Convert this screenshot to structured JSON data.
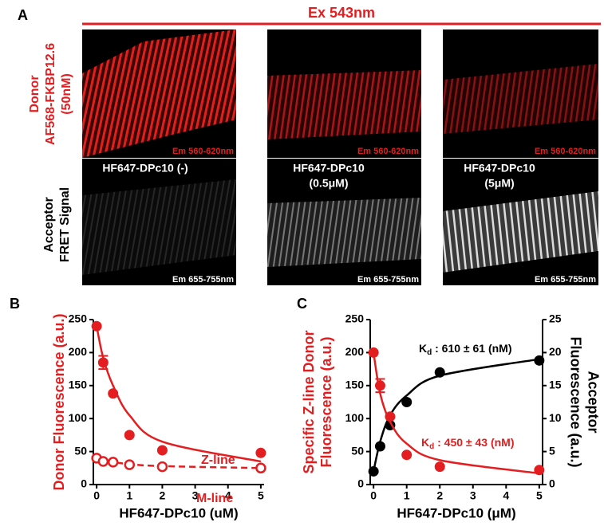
{
  "header": {
    "label": "A",
    "title": "Ex 543nm"
  },
  "images": {
    "row_labels": [
      [
        "Donor",
        "AF568-FKBP12.6",
        "(50nM)"
      ],
      [
        "Acceptor",
        "FRET Signal"
      ]
    ],
    "donor_captions": [
      "Em 560-620nm",
      "Em 560-620nm",
      "Em 560-620nm"
    ],
    "acceptor_titles": [
      [
        "HF647-DPc10 (-)"
      ],
      [
        "HF647-DPc10",
        "(0.5μM)"
      ],
      [
        "HF647-DPc10",
        "(5μM)"
      ]
    ],
    "acceptor_captions": [
      "Em 655-755nm",
      "Em 655-755nm",
      "Em 655-755nm"
    ]
  },
  "chart_data": [
    {
      "type": "scatter",
      "panel": "B",
      "xlabel": "HF647-DPc10 (uM)",
      "ylabel": [
        "Donor Fluorescence (a.u.)"
      ],
      "ylabel_color": "#e41e20",
      "x": [
        0,
        0.2,
        0.5,
        1,
        2,
        5
      ],
      "xlim": [
        -0.1,
        5.1
      ],
      "xticks": [
        0,
        1,
        2,
        3,
        4,
        5
      ],
      "ylim": [
        0,
        250
      ],
      "yticks": [
        0,
        50,
        100,
        150,
        200,
        250
      ],
      "series": [
        {
          "name": "Z-line",
          "color": "#e41e20",
          "marker": "filled",
          "line_style": "solid",
          "values": [
            240,
            185,
            138,
            75,
            52,
            48
          ],
          "errors": [
            null,
            10,
            null,
            null,
            null,
            null
          ],
          "fit": [
            240,
            192,
            150,
            105,
            65,
            35
          ]
        },
        {
          "name": "M-line",
          "color": "#e41e20",
          "marker": "open",
          "line_style": "dashed",
          "values": [
            40,
            35,
            34,
            30,
            27,
            25
          ],
          "fit": [
            40,
            36,
            34,
            31,
            28,
            25
          ]
        }
      ]
    },
    {
      "type": "scatter",
      "panel": "C",
      "xlabel": "HF647-DPc10 (μM)",
      "ylabel": [
        "Specific Z-line Donor",
        "Fluorescence (a.u.)"
      ],
      "ylabel_color": "#e41e20",
      "y2label": [
        "Acceptor",
        "Fluorescence (a.u.)"
      ],
      "y2label_color": "#000000",
      "x": [
        0,
        0.2,
        0.5,
        1,
        2,
        5
      ],
      "xlim": [
        -0.1,
        5.1
      ],
      "xticks": [
        0,
        1,
        2,
        3,
        4,
        5
      ],
      "ylim": [
        0,
        250
      ],
      "yticks": [
        0,
        50,
        100,
        150,
        200,
        250
      ],
      "y2lim": [
        0,
        25
      ],
      "y2ticks": [
        0,
        5,
        10,
        15,
        20,
        25
      ],
      "series": [
        {
          "color": "#000000",
          "marker": "filled",
          "line_style": "solid",
          "axis": "y2",
          "values": [
            2,
            5.8,
            9,
            12.5,
            17,
            18.8
          ],
          "fit": [
            2,
            6.5,
            10.5,
            13.5,
            16.5,
            19
          ]
        },
        {
          "color": "#e41e20",
          "marker": "filled",
          "line_style": "solid",
          "values": [
            200,
            150,
            103,
            45,
            27,
            22
          ],
          "errors": [
            null,
            10,
            null,
            null,
            null,
            null
          ],
          "fit": [
            200,
            138,
            95,
            62,
            37,
            17
          ]
        }
      ],
      "annotations": [
        {
          "main": "K",
          "sub": "d",
          "rest": " : 610 ± 61 (nM)",
          "color": "#000000"
        },
        {
          "main": "K",
          "sub": "d",
          "rest": " : 450 ± 43 (nM)",
          "color": "#e41e20"
        }
      ]
    }
  ]
}
